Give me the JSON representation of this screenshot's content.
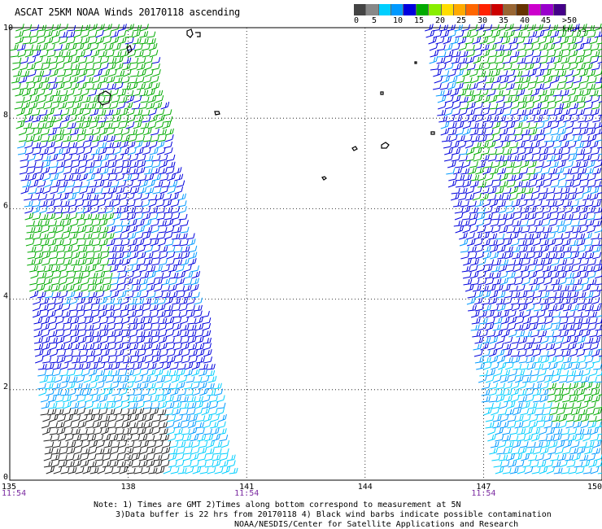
{
  "title": "ASCAT 25KM NOAA Winds 20170118 ascending",
  "colorbar": {
    "colors": [
      "#444444",
      "#888888",
      "#00cfff",
      "#0099ff",
      "#0000dd",
      "#00aa00",
      "#88ee00",
      "#ffdd00",
      "#ffaa00",
      "#ff6600",
      "#ff2200",
      "#cc0000",
      "#996633",
      "#663300",
      "#cc00cc",
      "#9900cc",
      "#440088"
    ],
    "labels": [
      "0",
      "5",
      "10",
      "15",
      "20",
      "25",
      "30",
      "35",
      "40",
      "45",
      ">50 knots"
    ]
  },
  "axes": {
    "x_ticks": [
      "135",
      "138",
      "141",
      "144",
      "147",
      "150"
    ],
    "y_ticks": [
      "0",
      "2",
      "4",
      "6",
      "8",
      "10"
    ],
    "lon_range": [
      135,
      150
    ],
    "lat_range": [
      0,
      10
    ]
  },
  "times": [
    {
      "label": "11:54",
      "lon": 135
    },
    {
      "label": "11:54",
      "lon": 141
    },
    {
      "label": "11:54",
      "lon": 147
    }
  ],
  "notes": {
    "line1": "Note: 1) Times are GMT 2)Times along bottom correspond to measurement at 5N",
    "line2": "3)Data buffer is 22 hrs from 20170118 4) Black wind barbs indicate possible contamination",
    "line3": "NOAA/NESDIS/Center for Satellite Applications and Research"
  }
}
